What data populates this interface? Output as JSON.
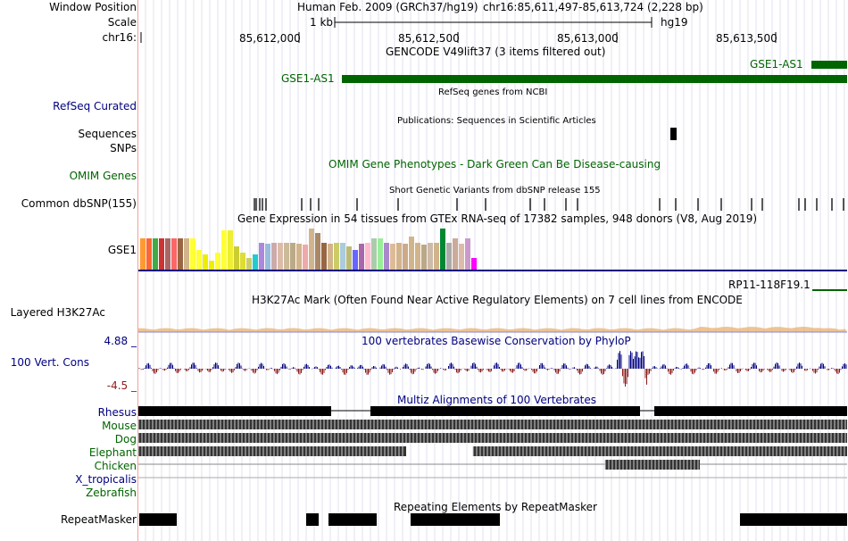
{
  "header": {
    "window_position_label": "Window Position",
    "scale_label": "Scale",
    "chrom_label": "chr16:",
    "assembly": "Human Feb. 2009 (GRCh37/hg19)",
    "position": "chr16:85,611,497-85,613,724 (2,228 bp)",
    "scale_value": "1 kb",
    "scale_db": "hg19",
    "ruler_ticks": [
      "85,612,000",
      "85,612,500",
      "85,613,000",
      "85,613,500"
    ]
  },
  "tracks": {
    "gencode": {
      "title": "GENCODE V49lift37 (3 items filtered out)",
      "gene_left": "GSE1-AS1",
      "gene_right": "GSE1-AS1"
    },
    "refseq": {
      "label": "RefSeq Curated",
      "title": "RefSeq genes from NCBI"
    },
    "publications": {
      "title": "Publications: Sequences in Scientific Articles"
    },
    "sequences": {
      "label": "Sequences"
    },
    "snps": {
      "label": "SNPs"
    },
    "omim": {
      "label": "OMIM Genes",
      "title": "OMIM Gene Phenotypes - Dark Green Can Be Disease-causing"
    },
    "dbsnp": {
      "label": "Common dbSNP(155)",
      "title": "Short Genetic Variants from dbSNP release 155"
    },
    "gtex": {
      "title": "Gene Expression in 54 tissues from GTEx RNA-seq of 17382 samples, 948 donors (V8, Aug 2019)",
      "gene": "GSE1",
      "bar_levels": [
        0.72,
        0.72,
        0.72,
        0.72,
        0.72,
        0.72,
        0.72,
        0.72,
        0.72,
        0.45,
        0.35,
        0.2,
        0.4,
        0.92,
        0.92,
        0.55,
        0.4,
        0.28,
        0.35,
        0.62,
        0.6,
        0.62,
        0.62,
        0.62,
        0.62,
        0.6,
        0.58,
        0.95,
        0.85,
        0.62,
        0.6,
        0.62,
        0.62,
        0.55,
        0.45,
        0.6,
        0.62,
        0.72,
        0.72,
        0.62,
        0.6,
        0.62,
        0.6,
        0.78,
        0.62,
        0.58,
        0.62,
        0.62,
        0.95,
        0.62,
        0.72,
        0.6,
        0.72,
        0.28
      ],
      "bar_colors": [
        "#ff9a33",
        "#ff6633",
        "#44aa44",
        "#cc3333",
        "#aa6666",
        "#ff6666",
        "#996644",
        "#d2b48c",
        "#ffff33",
        "#ffff33",
        "#eeee00",
        "#eeee00",
        "#ffff33",
        "#ffff33",
        "#eeee33",
        "#cccc33",
        "#dddd33",
        "#cccc66",
        "#22cccc",
        "#aa88dd",
        "#99bbdd",
        "#ccaaaa",
        "#ddbbaa",
        "#ccbb99",
        "#bbaa88",
        "#d2b48c",
        "#eeaaaa",
        "#d2b48c",
        "#aa8866",
        "#996644",
        "#d2b48c",
        "#cccc66",
        "#aaccdd",
        "#bbbb77",
        "#6666ff",
        "#aa66aa",
        "#ffbbcc",
        "#aaccaa",
        "#99ee99",
        "#aa88cc",
        "#ddbb99",
        "#d2b48c",
        "#ccaa88",
        "#d2b48c",
        "#d2b48c",
        "#bba888",
        "#ccbbaa",
        "#d2b48c",
        "#008833",
        "#aaaaaa",
        "#ccaa99",
        "#ddbbaa",
        "#cc99cc",
        "#ff00ff"
      ]
    },
    "rp11": {
      "gene": "RP11-118F19.1"
    },
    "h3k27ac": {
      "label": "Layered H3K27Ac",
      "title": "H3K27Ac Mark (Often Found Near Active Regulatory Elements) on 7 cell lines from ENCODE"
    },
    "phylop": {
      "label": "100 Vert. Cons",
      "title": "100 vertebrates Basewise Conservation by PhyloP",
      "max": "4.88 _",
      "min": "-4.5 _"
    },
    "multiz": {
      "title": "Multiz Alignments of 100 Vertebrates",
      "species": [
        "Rhesus",
        "Mouse",
        "Dog",
        "Elephant",
        "Chicken",
        "X_tropicalis",
        "Zebrafish"
      ]
    },
    "repeatmasker": {
      "label": "RepeatMasker",
      "title": "Repeating Elements by RepeatMasker"
    }
  }
}
